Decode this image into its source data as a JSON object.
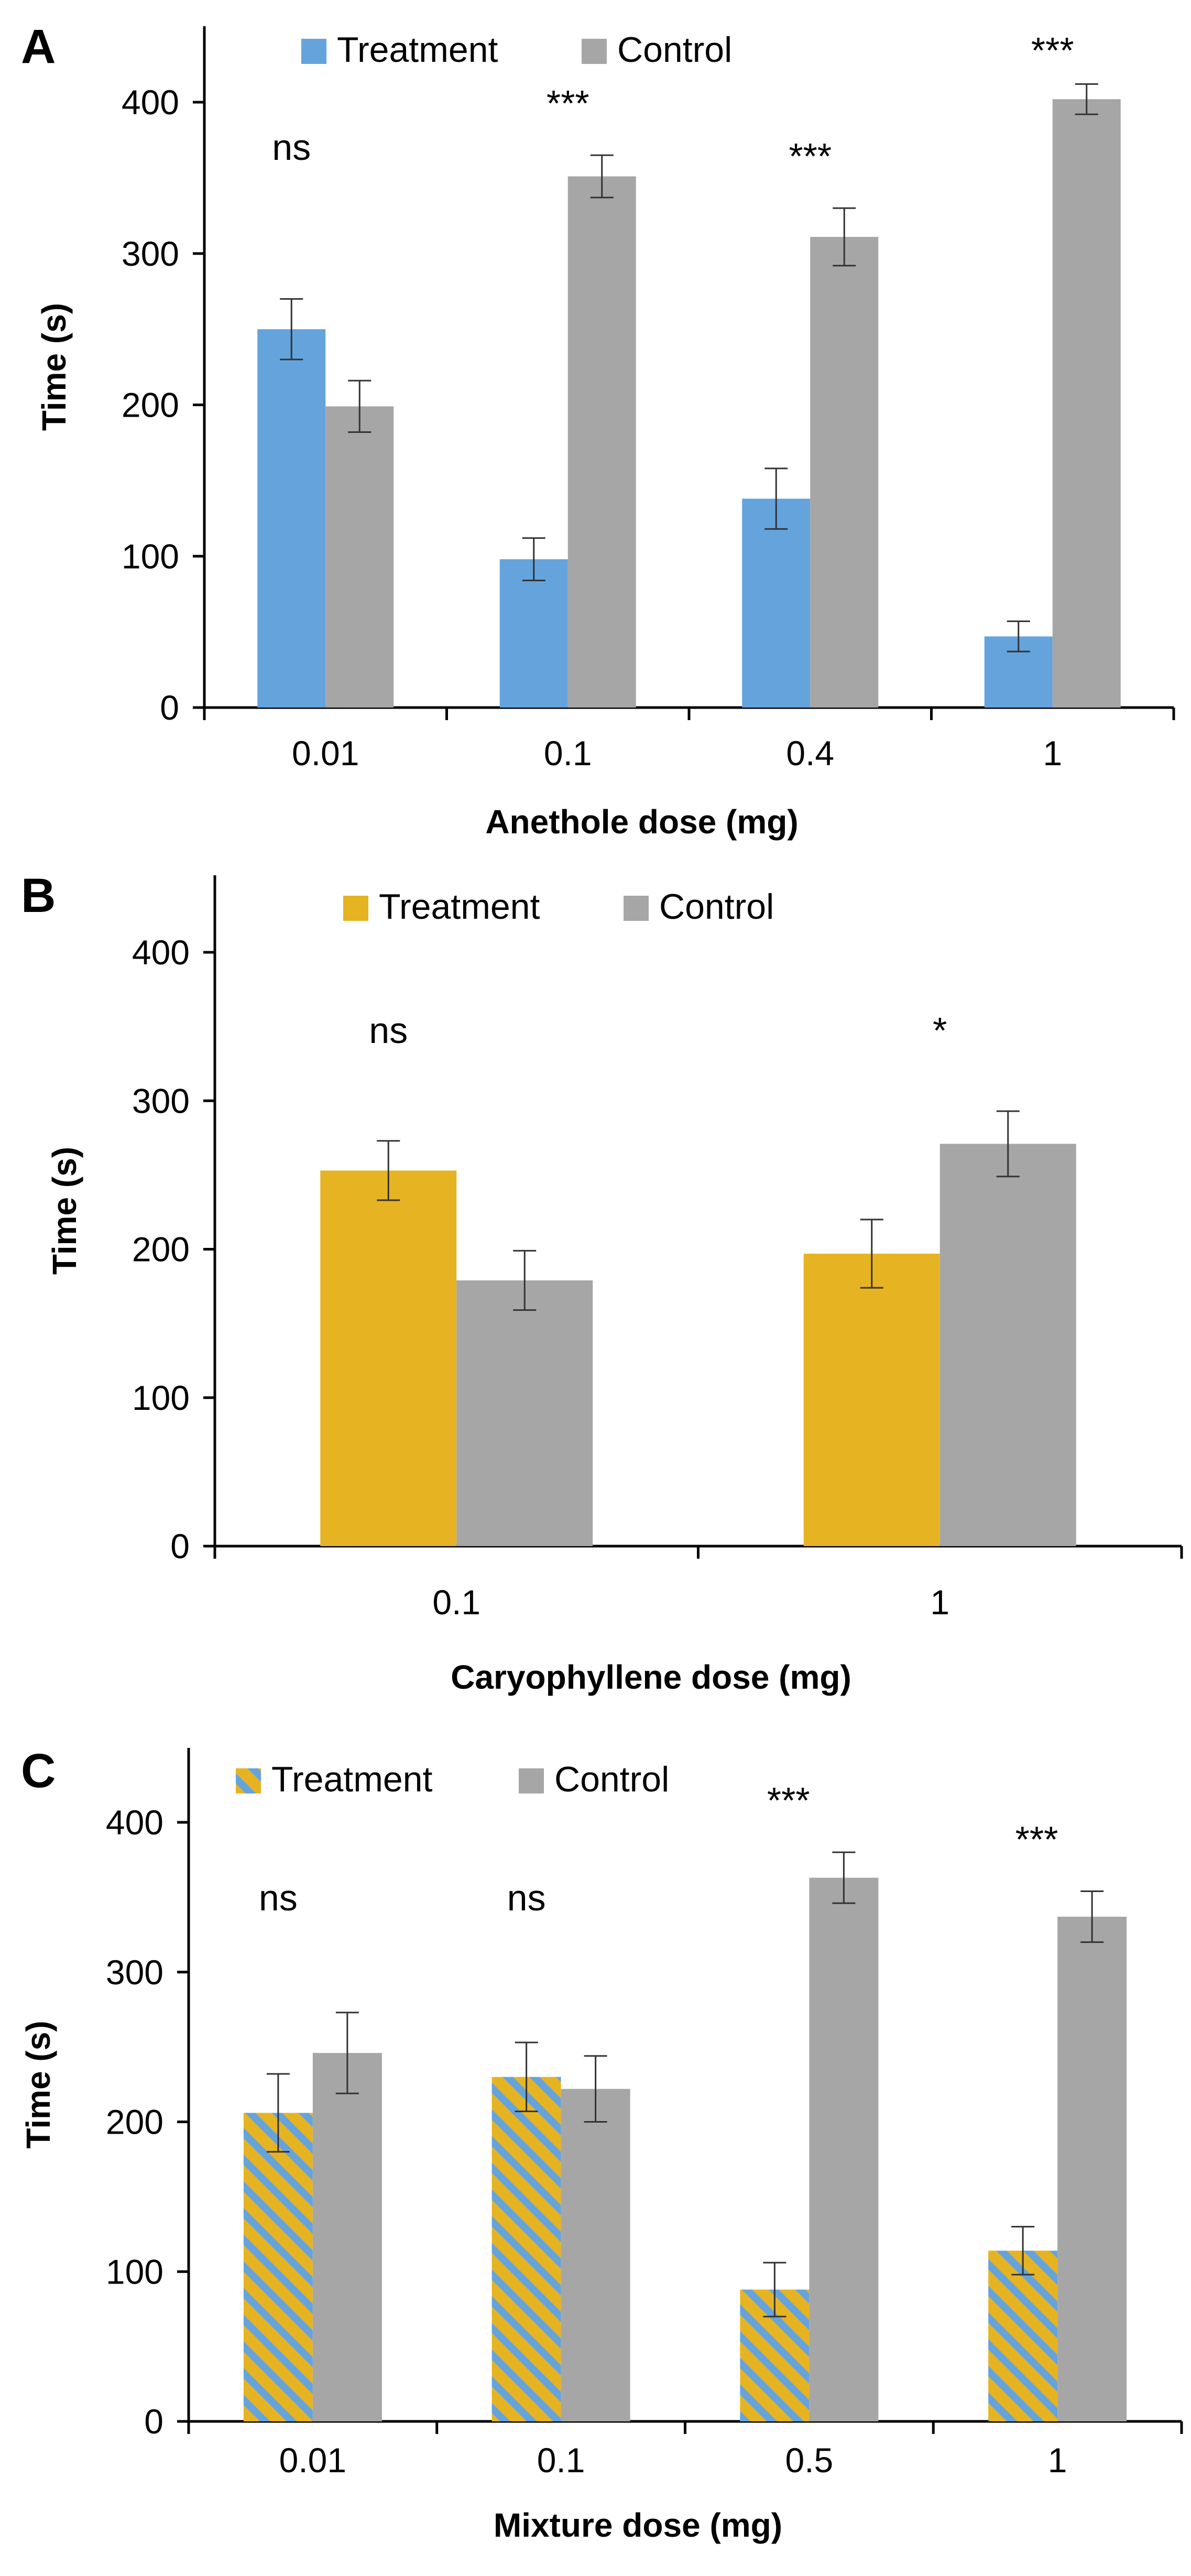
{
  "colors": {
    "treatment_blue": "#65a3dd",
    "treatment_yellow": "#e6b422",
    "control_gray": "#a6a6a6",
    "axis": "#000000",
    "error_bar": "#333333"
  },
  "chart_data": [
    {
      "panel": "A",
      "type": "bar",
      "xlabel": "Anethole dose (mg)",
      "ylabel": "Time (s)",
      "ylim": [
        0,
        400
      ],
      "yticks": [
        0,
        100,
        200,
        300,
        400
      ],
      "categories": [
        "0.01",
        "0.1",
        "0.4",
        "1"
      ],
      "legend": {
        "placement": "top"
      },
      "series": [
        {
          "name": "Treatment",
          "color": "#65a3dd",
          "pattern": "solid",
          "values": [
            250,
            98,
            138,
            47
          ],
          "errors": [
            20,
            14,
            20,
            10
          ]
        },
        {
          "name": "Control",
          "color": "#a6a6a6",
          "pattern": "solid",
          "values": [
            199,
            351,
            311,
            402
          ],
          "errors": [
            17,
            14,
            19,
            10
          ]
        }
      ],
      "significance": [
        "ns",
        "***",
        "***",
        "***"
      ]
    },
    {
      "panel": "B",
      "type": "bar",
      "xlabel": "Caryophyllene dose (mg)",
      "ylabel": "Time (s)",
      "ylim": [
        0,
        400
      ],
      "yticks": [
        0,
        100,
        200,
        300,
        400
      ],
      "categories": [
        "0.1",
        "1"
      ],
      "legend": {
        "placement": "top"
      },
      "series": [
        {
          "name": "Treatment",
          "color": "#e6b422",
          "pattern": "solid",
          "values": [
            253,
            197
          ],
          "errors": [
            20,
            23
          ]
        },
        {
          "name": "Control",
          "color": "#a6a6a6",
          "pattern": "solid",
          "values": [
            179,
            271
          ],
          "errors": [
            20,
            22
          ]
        }
      ],
      "significance": [
        "ns",
        "*"
      ]
    },
    {
      "panel": "C",
      "type": "bar",
      "xlabel": "Mixture dose (mg)",
      "ylabel": "Time (s)",
      "ylim": [
        0,
        400
      ],
      "yticks": [
        0,
        100,
        200,
        300,
        400
      ],
      "categories": [
        "0.01",
        "0.1",
        "0.5",
        "1"
      ],
      "legend": {
        "placement": "top"
      },
      "series": [
        {
          "name": "Treatment",
          "color": "#e6b422",
          "pattern": "striped-blue-yellow",
          "values": [
            206,
            230,
            88,
            114
          ],
          "errors": [
            26,
            23,
            18,
            16
          ]
        },
        {
          "name": "Control",
          "color": "#a6a6a6",
          "pattern": "solid",
          "values": [
            246,
            222,
            363,
            337
          ],
          "errors": [
            27,
            22,
            17,
            17
          ]
        }
      ],
      "significance": [
        "ns",
        "ns",
        "***",
        "***"
      ]
    }
  ]
}
